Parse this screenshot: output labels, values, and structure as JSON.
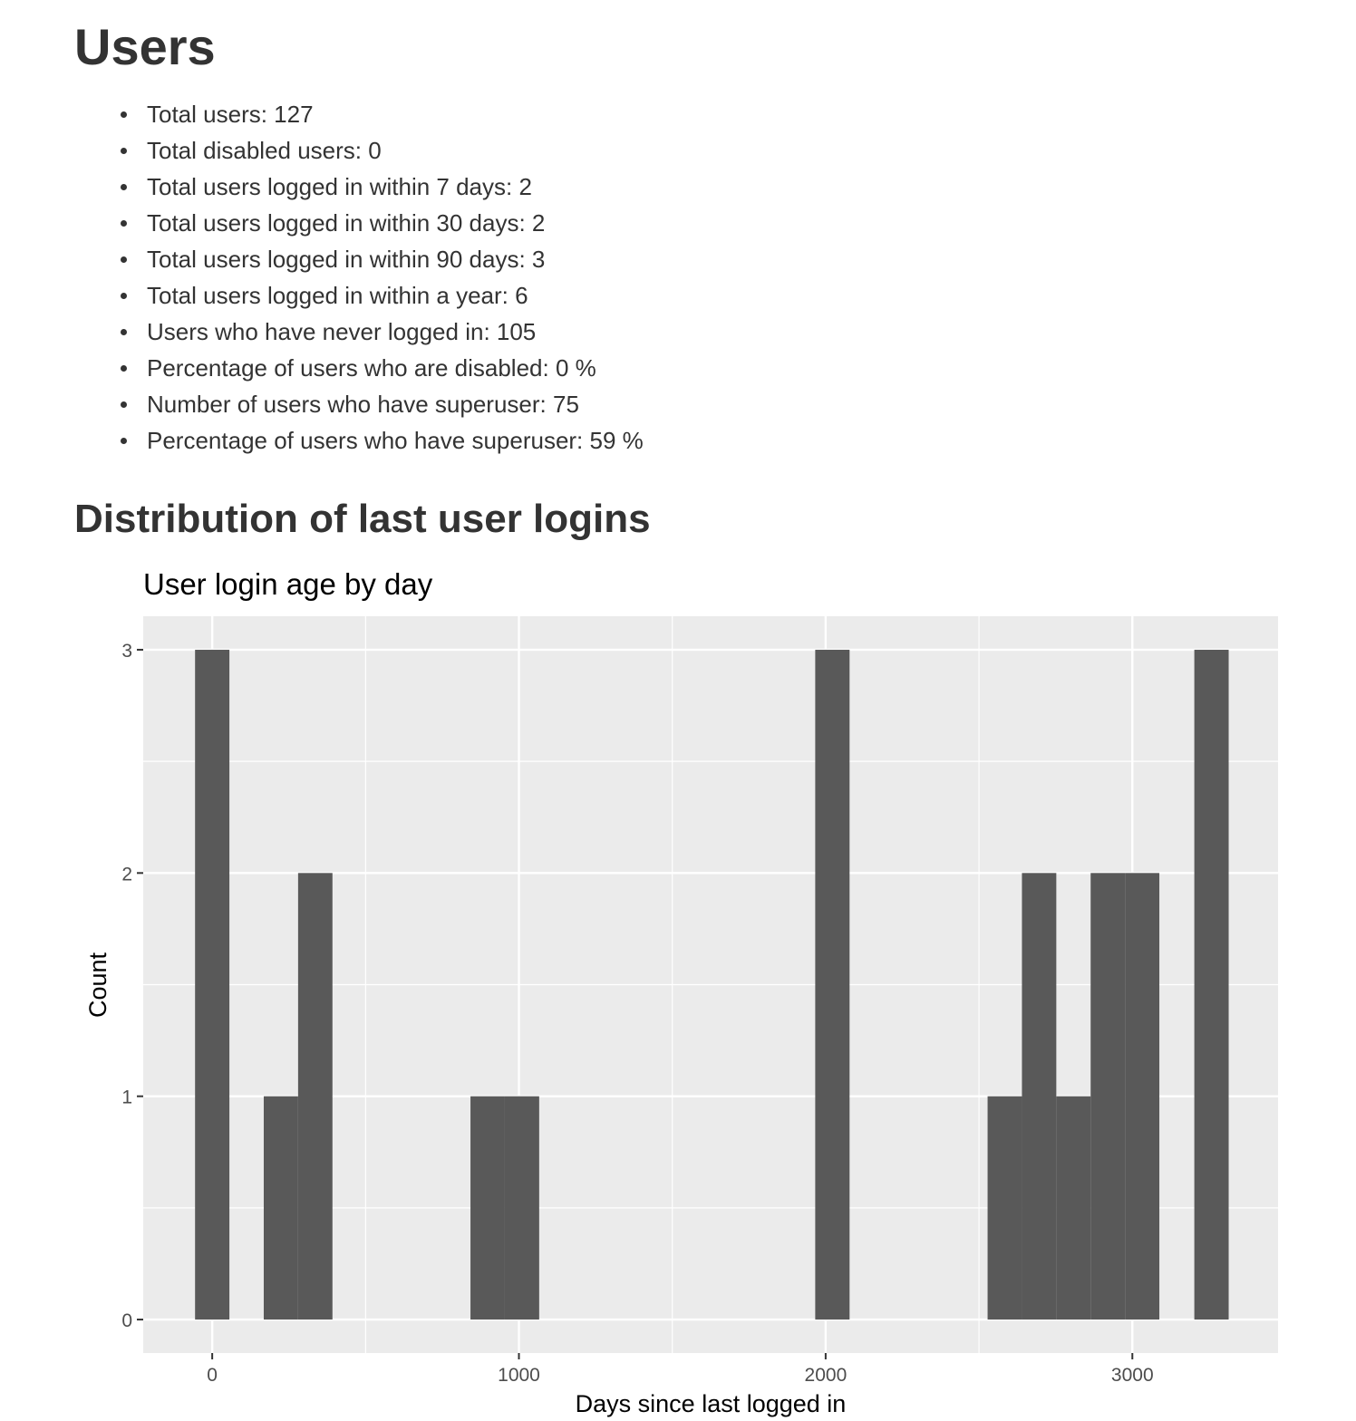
{
  "page": {
    "title": "Users",
    "section_title": "Distribution of last user logins"
  },
  "stats": [
    "Total users: 127",
    "Total disabled users: 0",
    "Total users logged in within 7 days: 2",
    "Total users logged in within 30 days: 2",
    "Total users logged in within 90 days: 3",
    "Total users logged in within a year: 6",
    "Users who have never logged in: 105",
    "Percentage of users who are disabled: 0 %",
    "Number of users who have superuser: 75",
    "Percentage of users who have superuser: 59 %"
  ],
  "chart_data": {
    "type": "bar",
    "title": "User login age by day",
    "xlabel": "Days since last logged in",
    "ylabel": "Count",
    "xlim": [
      -225,
      3475
    ],
    "ylim": [
      -0.15,
      3.15
    ],
    "x_ticks": [
      0,
      1000,
      2000,
      3000
    ],
    "x_tick_labels": [
      "0",
      "1000",
      "2000",
      "3000"
    ],
    "y_ticks": [
      0,
      1,
      2,
      3
    ],
    "y_tick_labels": [
      "0",
      "1",
      "2",
      "3"
    ],
    "bin_width": 112,
    "bins": [
      {
        "x0": -56,
        "x1": 56,
        "count": 3
      },
      {
        "x0": 168,
        "x1": 280,
        "count": 1
      },
      {
        "x0": 280,
        "x1": 392,
        "count": 2
      },
      {
        "x0": 842,
        "x1": 954,
        "count": 1
      },
      {
        "x0": 954,
        "x1": 1066,
        "count": 1
      },
      {
        "x0": 1966,
        "x1": 2078,
        "count": 3
      },
      {
        "x0": 2528,
        "x1": 2640,
        "count": 1
      },
      {
        "x0": 2640,
        "x1": 2752,
        "count": 2
      },
      {
        "x0": 2752,
        "x1": 2864,
        "count": 1
      },
      {
        "x0": 2864,
        "x1": 2976,
        "count": 2
      },
      {
        "x0": 2976,
        "x1": 3088,
        "count": 2
      },
      {
        "x0": 3202,
        "x1": 3314,
        "count": 3
      }
    ],
    "grid": true,
    "legend": "none",
    "colors": {
      "panel_background": "#ebebeb",
      "grid": "#ffffff",
      "bar_fill": "#595959",
      "axis_text": "#4d4d4d",
      "title_text": "#000000"
    }
  }
}
